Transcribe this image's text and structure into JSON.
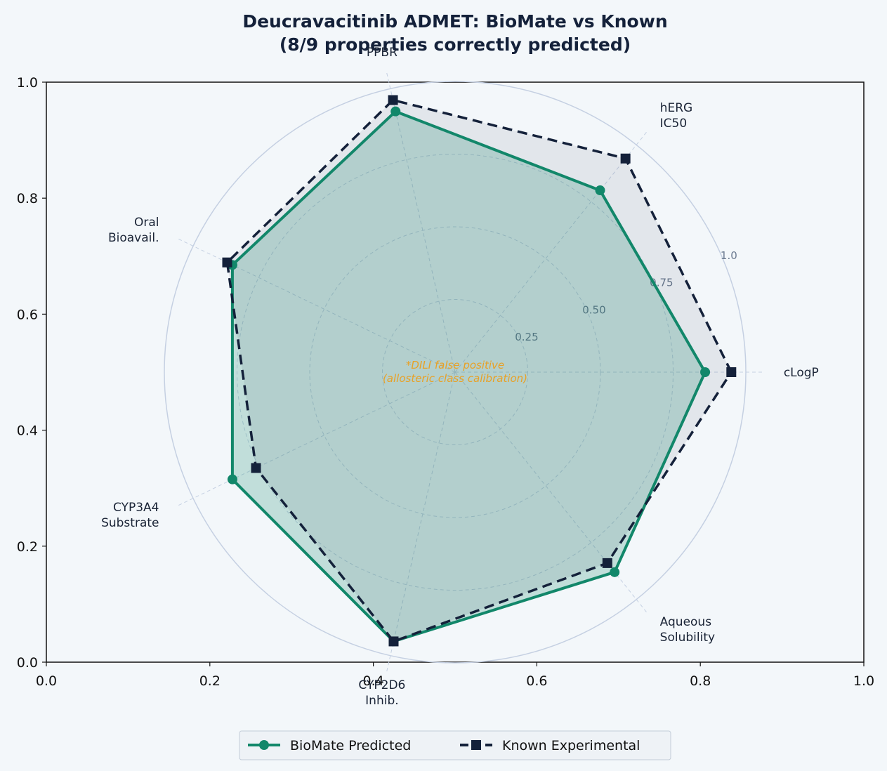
{
  "chart_data": {
    "type": "radar",
    "title": "Deucravacitinib ADMET: BioMate vs Known",
    "subtitle": "(8/9 properties correctly predicted)",
    "axes": [
      "cLogP",
      "hERG\nIC50",
      "PPBR",
      "Oral\nBioavail.",
      "CYP3A4\nSubstrate",
      "CYP2D6\nInhib.",
      "Aqueous\nSolubility"
    ],
    "radial_ticks": [
      "0.25",
      "0.50",
      "0.75",
      "1.0"
    ],
    "radial_range": [
      0,
      1
    ],
    "series": [
      {
        "name": "BioMate Predicted",
        "values": [
          0.86,
          0.8,
          0.92,
          0.85,
          0.85,
          0.95,
          0.88
        ],
        "color": "#12876a",
        "marker": "circle",
        "line": "solid",
        "fill": "#12876a"
      },
      {
        "name": "Known Experimental",
        "values": [
          0.95,
          0.94,
          0.96,
          0.87,
          0.76,
          0.95,
          0.84
        ],
        "color": "#14213a",
        "marker": "square",
        "line": "dashed",
        "fill": "#14213a"
      }
    ],
    "annotation": "*DILI false positive\n(allosteric class calibration)",
    "frame_xticks": [
      "0.0",
      "0.2",
      "0.4",
      "0.6",
      "0.8",
      "1.0"
    ],
    "frame_yticks": [
      "0.0",
      "0.2",
      "0.4",
      "0.6",
      "0.8",
      "1.0"
    ],
    "legend_position": "bottom-center",
    "colors": {
      "background": "#f3f7fa",
      "grid": "#c5d0e2",
      "annotation": "#e8a126"
    }
  }
}
